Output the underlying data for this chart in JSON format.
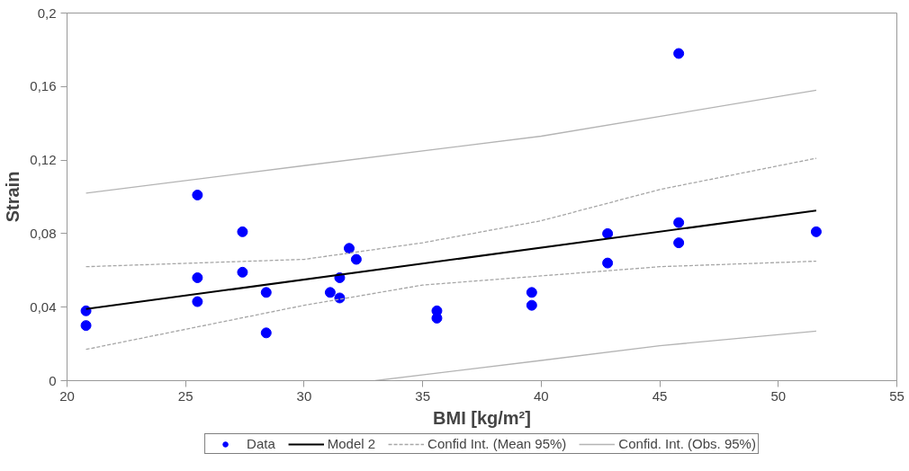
{
  "chart_data": {
    "type": "scatter",
    "xlabel": "BMI [kg/m²]",
    "ylabel": "Strain",
    "xlim": [
      20,
      55
    ],
    "xticks": [
      20,
      25,
      30,
      35,
      40,
      45,
      50,
      55
    ],
    "ylim": [
      0,
      0.2
    ],
    "yticks": [
      {
        "value": 0,
        "label": "0"
      },
      {
        "value": 0.04,
        "label": "0,04"
      },
      {
        "value": 0.08,
        "label": "0,08"
      },
      {
        "value": 0.12,
        "label": "0,12"
      },
      {
        "value": 0.16,
        "label": "0,16"
      },
      {
        "value": 0.2,
        "label": "0,2"
      }
    ],
    "grid": false,
    "legend": "bottom",
    "series": [
      {
        "name": "Data",
        "type": "scatter",
        "marker": "circle",
        "color": "#0000ff",
        "x": [
          20.8,
          20.8,
          25.5,
          25.5,
          25.5,
          27.4,
          27.4,
          28.4,
          28.4,
          31.1,
          31.5,
          31.5,
          31.9,
          32.2,
          35.6,
          35.6,
          39.6,
          39.6,
          42.8,
          42.8,
          45.8,
          45.8,
          45.8,
          51.6
        ],
        "values": [
          0.038,
          0.03,
          0.101,
          0.056,
          0.043,
          0.081,
          0.059,
          0.048,
          0.026,
          0.048,
          0.056,
          0.045,
          0.072,
          0.066,
          0.038,
          0.034,
          0.048,
          0.041,
          0.08,
          0.064,
          0.178,
          0.086,
          0.075,
          0.081
        ]
      },
      {
        "name": "Model 2",
        "type": "line",
        "line_style": "solid",
        "color": "#000000",
        "x": [
          20.8,
          51.6
        ],
        "values": [
          0.039,
          0.0925
        ]
      },
      {
        "name": "Confid Int. (Mean 95%)",
        "type": "line",
        "line_style": "dashed",
        "color": "#a6a6a6",
        "x": [
          20.8,
          30,
          35,
          40,
          45,
          51.6
        ],
        "values": [
          0.062,
          0.066,
          0.075,
          0.087,
          0.104,
          0.121
        ]
      },
      {
        "type": "line",
        "line_style": "dashed",
        "color": "#a6a6a6",
        "x": [
          20.8,
          30,
          35,
          40,
          45,
          51.6
        ],
        "values": [
          0.017,
          0.041,
          0.052,
          0.057,
          0.062,
          0.065
        ]
      },
      {
        "name": "Confid. Int. (Obs. 95%)",
        "type": "line",
        "line_style": "solid",
        "color": "#b4b4b4",
        "x": [
          20.8,
          30,
          40,
          51.6
        ],
        "values": [
          0.102,
          0.117,
          0.133,
          0.158
        ]
      },
      {
        "type": "line",
        "line_style": "solid",
        "color": "#b4b4b4",
        "x": [
          33,
          40,
          45,
          51.6
        ],
        "values": [
          0,
          0.011,
          0.019,
          0.027
        ]
      }
    ]
  }
}
